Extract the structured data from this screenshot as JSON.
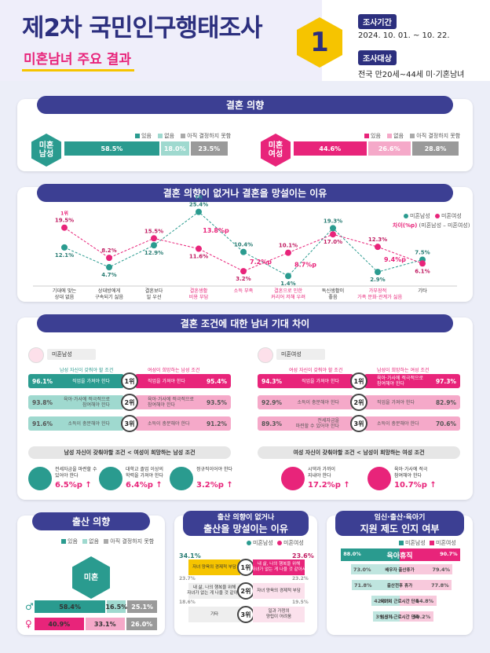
{
  "header": {
    "title": "제2차 국민인구행태조사",
    "subtitle": "미혼남녀 주요 결과",
    "number": "1",
    "period_label": "조사기간",
    "period_value": "2024. 10. 01. ~ 10. 22.",
    "target_label": "조사대상",
    "target_value": "전국 만20세~44세 미·기혼남녀"
  },
  "colors": {
    "navy": "#2c2f7e",
    "pink": "#e8247a",
    "green": "#2a9b8f",
    "yellow": "#f6c400"
  },
  "marriage_intent": {
    "title": "결혼 의향",
    "legend": [
      "있음",
      "없음",
      "아직 결정하지 못함"
    ],
    "male": {
      "label": "미혼\n남성",
      "values": [
        "58.5%",
        "18.0%",
        "23.5%"
      ],
      "numbers": [
        58.5,
        18.0,
        23.5
      ]
    },
    "female": {
      "label": "미혼\n여성",
      "values": [
        "44.6%",
        "26.6%",
        "28.8%"
      ],
      "numbers": [
        44.6,
        26.6,
        28.8
      ]
    }
  },
  "reasons": {
    "title": "결혼 의향이 없거나 결혼을 망설이는 이유",
    "legend_male": "미혼남성",
    "legend_female": "미혼여성",
    "diff_label": "차이(%p)",
    "diff_note": "(미혼남성 – 미혼여성)",
    "rank_badge_m": "1위",
    "rank_badge_f": "1위",
    "items": [
      {
        "label": "기대에 맞는\n상대 없음",
        "male": "12.1%",
        "female": "19.5%",
        "m": 12.1,
        "f": 19.5,
        "diff": ""
      },
      {
        "label": "상대방에게\n구속되기 싫음",
        "male": "4.7%",
        "female": "8.2%",
        "m": 4.7,
        "f": 8.2,
        "diff": ""
      },
      {
        "label": "결혼보다\n일 우선",
        "male": "12.9%",
        "female": "15.5%",
        "m": 12.9,
        "f": 15.5,
        "diff": ""
      },
      {
        "label": "결혼생활\n비용 부담",
        "male": "25.4%",
        "female": "11.6%",
        "m": 25.4,
        "f": 11.6,
        "diff": "13.8%p"
      },
      {
        "label": "소득 부족",
        "male": "10.4%",
        "female": "3.2%",
        "m": 10.4,
        "f": 3.2,
        "diff": "7.2%p"
      },
      {
        "label": "결혼으로 인한\n커리어 저해 우려",
        "male": "1.4%",
        "female": "10.1%",
        "m": 1.4,
        "f": 10.1,
        "diff": "8.7%p"
      },
      {
        "label": "독신생활이\n좋음",
        "male": "19.3%",
        "female": "17.0%",
        "m": 19.3,
        "f": 17.0,
        "diff": ""
      },
      {
        "label": "가부장적\n가족 문화·관계가 싫음",
        "male": "2.9%",
        "female": "12.3%",
        "m": 2.9,
        "f": 12.3,
        "diff": "9.4%p"
      },
      {
        "label": "기타",
        "male": "7.5%",
        "female": "6.1%",
        "m": 7.5,
        "f": 6.1,
        "diff": ""
      }
    ]
  },
  "conditions": {
    "title": "결혼 조건에 대한 남녀 기대 차이",
    "male": {
      "tag": "미혼남성",
      "left_head": "남성 자신이 갖춰야 할 조건",
      "right_head": "여성이 희망하는 남성 조건",
      "rows": [
        {
          "rank": "1위",
          "lv": "96.1%",
          "lt": "직업을 가져야 한다",
          "rt": "직업을 가져야 한다",
          "rv": "95.4%"
        },
        {
          "rank": "2위",
          "lv": "93.8%",
          "lt": "육아·가사에 적극적으로\n참여해야 한다",
          "rt": "육아·가사에 적극적으로\n참여해야 한다",
          "rv": "93.5%"
        },
        {
          "rank": "3위",
          "lv": "91.6%",
          "lt": "소득이 충분해야 한다",
          "rt": "소득이 충분해야 한다",
          "rv": "91.2%"
        }
      ],
      "gap_title": "남성 자신이 갖춰야할 조건 < 여성이 희망하는 남성 조건",
      "gaps": [
        {
          "text": "전세자금을 마련할 수\n있어야 한다",
          "val": "6.5%p ↑"
        },
        {
          "text": "대학교 졸업 이상의\n학력을 가져야 한다",
          "val": "6.4%p ↑"
        },
        {
          "text": "정규직이어야 한다",
          "val": "3.2%p ↑"
        }
      ]
    },
    "female": {
      "tag": "미혼여성",
      "left_head": "여성 자신이 갖춰야 할 조건",
      "right_head": "남성이 희망하는 여성 조건",
      "rows": [
        {
          "rank": "1위",
          "lv": "94.3%",
          "lt": "직업을 가져야 한다",
          "rt": "육아·가사에 적극적으로\n참여해야 한다",
          "rv": "97.3%"
        },
        {
          "rank": "2위",
          "lv": "92.9%",
          "lt": "소득이 충분해야 한다",
          "rt": "직업을 가져야 한다",
          "rv": "82.9%"
        },
        {
          "rank": "3위",
          "lv": "89.3%",
          "lt": "전세자금을\n마련할 수 있어야 한다",
          "rt": "소득이 충분해야 한다",
          "rv": "70.6%"
        }
      ],
      "gap_title": "여성 자신이 갖춰야할 조건 < 남성이 희망하는 여성 조건",
      "gaps": [
        {
          "text": "시댁과 가까이\n지내야 한다",
          "val": "17.2%p ↑"
        },
        {
          "text": "육아·가사에 적극\n참여해야 한다",
          "val": "10.7%p ↑"
        }
      ]
    }
  },
  "birth_intent": {
    "title": "출산 의향",
    "legend": [
      "있음",
      "없음",
      "아직 결정하지 못함"
    ],
    "badge": "미혼",
    "male": {
      "values": [
        "58.4%",
        "16.5%",
        "25.1%"
      ],
      "numbers": [
        58.4,
        16.5,
        25.1
      ]
    },
    "female": {
      "values": [
        "40.9%",
        "33.1%",
        "26.0%"
      ],
      "numbers": [
        40.9,
        33.1,
        26.0
      ]
    }
  },
  "birth_reasons": {
    "title_line1": "출산 의향이 없거나",
    "title_line2": "출산을 망설이는 이유",
    "legend_male": "미혼남성",
    "legend_female": "미혼여성",
    "rows": [
      {
        "rank": "1위",
        "mv": "34.1%",
        "mt": "자녀 양육의 경제적 부담",
        "ft": "내 삶, 나의 행복을 위해\n자녀가 없는 게 나을 것 같아서",
        "fv": "23.6%"
      },
      {
        "rank": "2위",
        "mv": "23.7%",
        "mt": "내 삶, 나의 행복을 위해\n자녀가 없는 게 나을 것 같아서",
        "ft": "자녀 양육의 경제적 부담",
        "fv": "23.2%"
      },
      {
        "rank": "3위",
        "mv": "18.6%",
        "mt": "기타",
        "ft": "일과 가정의\n양립이 어려움",
        "fv": "19.5%"
      }
    ]
  },
  "support": {
    "title_line1": "임신·출산·육아기",
    "title_line2": "지원 제도 인지 여부",
    "legend_male": "미혼남성",
    "legend_female": "미혼여성",
    "rows": [
      {
        "label": "육아휴직",
        "mv": "88.0%",
        "fv": "90.7%",
        "m": 88.0,
        "f": 90.7
      },
      {
        "label": "배우자 출산휴가",
        "mv": "73.0%",
        "fv": "79.4%",
        "m": 73.0,
        "f": 79.4
      },
      {
        "label": "출산전후 휴가",
        "mv": "71.8%",
        "fv": "77.8%",
        "m": 71.8,
        "f": 77.8
      },
      {
        "label": "육아기 근로시간 단축",
        "mv": "42.1%",
        "fv": "54.8%",
        "m": 42.1,
        "f": 54.8
      },
      {
        "label": "임신기 근로시간 단축",
        "mv": "39.5%",
        "fv": "50.2%",
        "m": 39.5,
        "f": 50.2
      }
    ]
  }
}
